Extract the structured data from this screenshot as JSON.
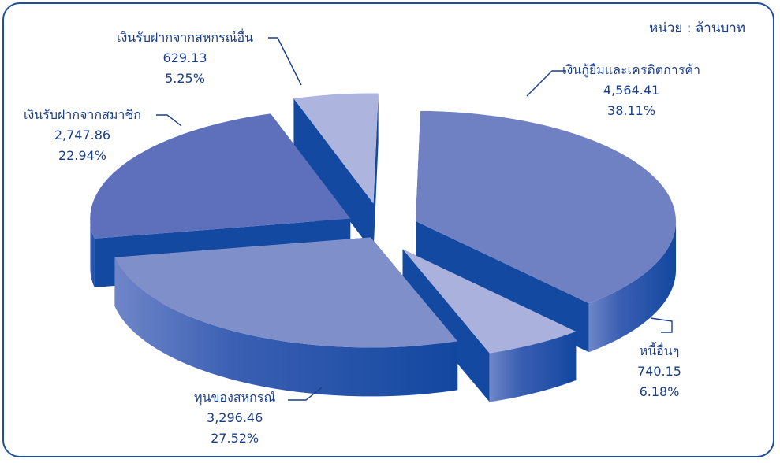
{
  "unit_label": "หน่วย : ล้านบาท",
  "chart_data": {
    "type": "pie",
    "categories": [
      "เงินกู้ยืมและเครดิตการค้า",
      "หนี้อื่นๆ",
      "ทุนของสหกรณ์",
      "เงินรับฝากจากสมาชิก",
      "เงินรับฝากจากสหกรณ์อื่น"
    ],
    "values": [
      4564.41,
      740.15,
      3296.46,
      2747.86,
      629.13
    ],
    "value_labels": [
      "4,564.41",
      "740.15",
      "3,296.46",
      "2,747.86",
      "629.13"
    ],
    "percent_labels": [
      "38.11%",
      "6.18%",
      "27.52%",
      "22.94%",
      "5.25%"
    ],
    "colors": [
      "#6f80c3",
      "#a9b1dc",
      "#7f8fca",
      "#5e70bb",
      "#adb5de"
    ],
    "side_color": "#1449a2",
    "three_d": true,
    "exploded": true
  }
}
